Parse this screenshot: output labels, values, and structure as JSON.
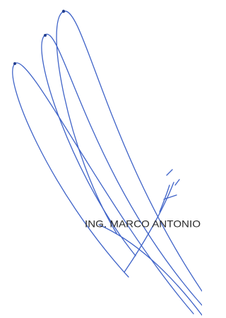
{
  "signature": {
    "name": "ING. MARCO ANTONIO"
  }
}
